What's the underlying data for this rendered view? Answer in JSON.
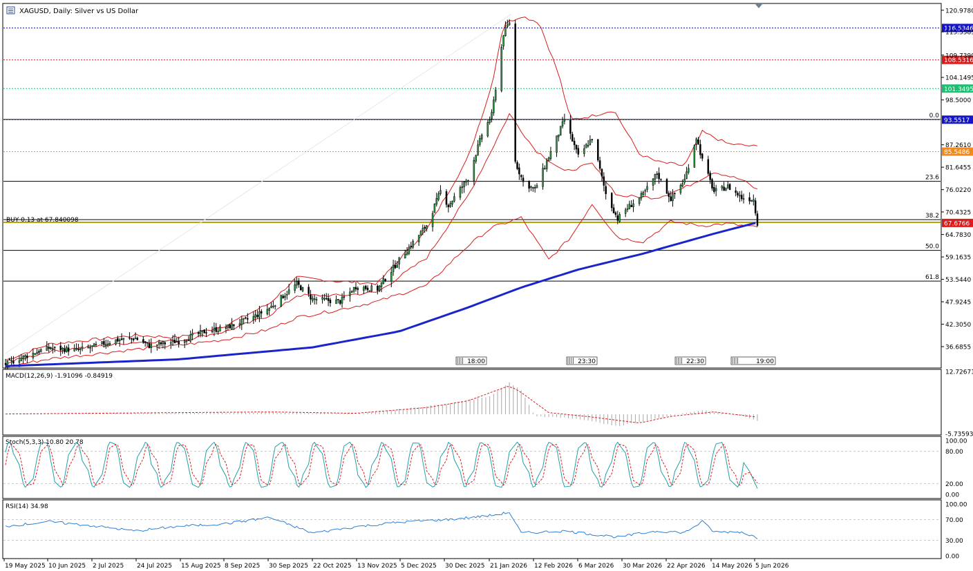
{
  "symbol_title": "XAGUSD, Daily:  Silver vs US Dollar",
  "chart_data": {
    "type": "line",
    "title": "XAGUSD, Daily:  Silver vs US Dollar",
    "x_dates": [
      "19 May 2025",
      "10 Jun 2025",
      "2 Jul 2025",
      "24 Jul 2025",
      "15 Aug 2025",
      "8 Sep 2025",
      "30 Sep 2025",
      "22 Oct 2025",
      "13 Nov 2025",
      "5 Dec 2025",
      "30 Dec 2025",
      "21 Jan 2026",
      "12 Feb 2026",
      "6 Mar 2026",
      "30 Mar 2026",
      "22 Apr 2026",
      "14 May 2026",
      "5 Jun 2026"
    ],
    "price_ticks": [
      "120.9780",
      "115.5585",
      "109.7390",
      "104.1495",
      "98.5000",
      "87.2610",
      "81.6455",
      "76.0220",
      "70.4325",
      "64.7830",
      "59.1635",
      "53.5440",
      "47.9245",
      "42.3050",
      "36.6855"
    ],
    "price_range": [
      31.5,
      122.5
    ],
    "horizontal_lines": [
      {
        "label": "116.5346",
        "value": 116.5346,
        "color": "#1515c8",
        "style": "dotted"
      },
      {
        "label": "108.5316",
        "value": 108.5316,
        "color": "#d81c1c",
        "style": "dotted"
      },
      {
        "label": "101.3495",
        "value": 101.3495,
        "color": "#18c070",
        "style": "dotted"
      },
      {
        "label": "93.5517",
        "value": 93.5517,
        "color": "#1515c8",
        "style": "dotted"
      },
      {
        "label": "85.5486",
        "value": 85.5486,
        "color": "#f08a1c",
        "style": "dotted"
      },
      {
        "label": "67.6766",
        "value": 67.6766,
        "color": "#e01a1a",
        "style": "current"
      }
    ],
    "fibonacci_levels": [
      {
        "label": "0.0",
        "value": 93.6
      },
      {
        "label": "23.6",
        "value": 78.1
      },
      {
        "label": "38.2",
        "value": 68.5
      },
      {
        "label": "50.0",
        "value": 60.8
      },
      {
        "label": "61.8",
        "value": 53.1
      }
    ],
    "trade_line": {
      "label": "BUY 0.13 at 67.840098",
      "value": 67.8401
    },
    "session_markers": [
      "18:00",
      "23:30",
      "22:30",
      "19:00"
    ],
    "close_series": [
      {
        "x": "2025-05-19",
        "y": 32.3
      },
      {
        "x": "2025-06-05",
        "y": 35.6
      },
      {
        "x": "2025-06-10",
        "y": 36.3
      },
      {
        "x": "2025-06-25",
        "y": 35.8
      },
      {
        "x": "2025-07-02",
        "y": 36.6
      },
      {
        "x": "2025-07-14",
        "y": 38.3
      },
      {
        "x": "2025-07-24",
        "y": 38.8
      },
      {
        "x": "2025-07-31",
        "y": 36.9
      },
      {
        "x": "2025-08-15",
        "y": 38.1
      },
      {
        "x": "2025-08-29",
        "y": 40.6
      },
      {
        "x": "2025-09-08",
        "y": 41.4
      },
      {
        "x": "2025-09-22",
        "y": 44.1
      },
      {
        "x": "2025-09-30",
        "y": 46.3
      },
      {
        "x": "2025-10-14",
        "y": 52.4
      },
      {
        "x": "2025-10-22",
        "y": 48.6
      },
      {
        "x": "2025-11-05",
        "y": 48.0
      },
      {
        "x": "2025-11-13",
        "y": 51.7
      },
      {
        "x": "2025-11-24",
        "y": 51.1
      },
      {
        "x": "2025-12-05",
        "y": 58.4
      },
      {
        "x": "2025-12-19",
        "y": 67.1
      },
      {
        "x": "2025-12-26",
        "y": 75.6
      },
      {
        "x": "2025-12-30",
        "y": 72.0
      },
      {
        "x": "2026-01-09",
        "y": 78.9
      },
      {
        "x": "2026-01-16",
        "y": 89.8
      },
      {
        "x": "2026-01-21",
        "y": 94.7
      },
      {
        "x": "2026-01-27",
        "y": 115.1
      },
      {
        "x": "2026-01-30",
        "y": 118.0
      },
      {
        "x": "2026-02-02",
        "y": 83.0
      },
      {
        "x": "2026-02-06",
        "y": 77.9
      },
      {
        "x": "2026-02-12",
        "y": 76.0
      },
      {
        "x": "2026-02-20",
        "y": 85.4
      },
      {
        "x": "2026-02-27",
        "y": 93.6
      },
      {
        "x": "2026-03-06",
        "y": 84.3
      },
      {
        "x": "2026-03-13",
        "y": 88.9
      },
      {
        "x": "2026-03-20",
        "y": 75.0
      },
      {
        "x": "2026-03-26",
        "y": 68.7
      },
      {
        "x": "2026-03-30",
        "y": 71.0
      },
      {
        "x": "2026-04-08",
        "y": 74.8
      },
      {
        "x": "2026-04-15",
        "y": 80.1
      },
      {
        "x": "2026-04-22",
        "y": 73.7
      },
      {
        "x": "2026-04-29",
        "y": 78.5
      },
      {
        "x": "2026-05-05",
        "y": 89.2
      },
      {
        "x": "2026-05-08",
        "y": 83.4
      },
      {
        "x": "2026-05-14",
        "y": 75.5
      },
      {
        "x": "2026-05-21",
        "y": 76.8
      },
      {
        "x": "2026-05-28",
        "y": 74.0
      },
      {
        "x": "2026-06-03",
        "y": 73.6
      },
      {
        "x": "2026-06-05",
        "y": 67.7
      }
    ],
    "bollinger_upper": [
      {
        "x": "2025-05-19",
        "y": 33.3
      },
      {
        "x": "2025-06-10",
        "y": 37.3
      },
      {
        "x": "2025-07-24",
        "y": 39.5
      },
      {
        "x": "2025-08-15",
        "y": 39.0
      },
      {
        "x": "2025-09-08",
        "y": 42.0
      },
      {
        "x": "2025-09-30",
        "y": 47.5
      },
      {
        "x": "2025-10-14",
        "y": 54.0
      },
      {
        "x": "2025-11-05",
        "y": 53.0
      },
      {
        "x": "2025-11-24",
        "y": 52.5
      },
      {
        "x": "2025-12-19",
        "y": 66.0
      },
      {
        "x": "2026-01-09",
        "y": 84.0
      },
      {
        "x": "2026-01-21",
        "y": 102.0
      },
      {
        "x": "2026-01-27",
        "y": 117.5
      },
      {
        "x": "2026-02-05",
        "y": 119.5
      },
      {
        "x": "2026-02-14",
        "y": 118.0
      },
      {
        "x": "2026-02-24",
        "y": 105.0
      },
      {
        "x": "2026-03-02",
        "y": 93.5
      },
      {
        "x": "2026-03-13",
        "y": 94.5
      },
      {
        "x": "2026-03-24",
        "y": 96.0
      },
      {
        "x": "2026-04-06",
        "y": 85.0
      },
      {
        "x": "2026-04-15",
        "y": 83.0
      },
      {
        "x": "2026-04-29",
        "y": 82.0
      },
      {
        "x": "2026-05-08",
        "y": 90.5
      },
      {
        "x": "2026-05-21",
        "y": 87.5
      },
      {
        "x": "2026-06-05",
        "y": 86.8
      }
    ],
    "bollinger_middle": [
      {
        "x": "2025-05-19",
        "y": 32.5
      },
      {
        "x": "2025-06-10",
        "y": 35.5
      },
      {
        "x": "2025-07-24",
        "y": 37.8
      },
      {
        "x": "2025-08-15",
        "y": 38.2
      },
      {
        "x": "2025-09-08",
        "y": 40.5
      },
      {
        "x": "2025-09-30",
        "y": 44.5
      },
      {
        "x": "2025-10-14",
        "y": 49.5
      },
      {
        "x": "2025-11-05",
        "y": 49.5
      },
      {
        "x": "2025-11-24",
        "y": 50.3
      },
      {
        "x": "2025-12-19",
        "y": 59.0
      },
      {
        "x": "2026-01-09",
        "y": 74.5
      },
      {
        "x": "2026-01-21",
        "y": 86.0
      },
      {
        "x": "2026-01-30",
        "y": 95.0
      },
      {
        "x": "2026-02-12",
        "y": 86.0
      },
      {
        "x": "2026-02-27",
        "y": 80.5
      },
      {
        "x": "2026-03-13",
        "y": 82.5
      },
      {
        "x": "2026-03-26",
        "y": 74.5
      },
      {
        "x": "2026-04-15",
        "y": 74.0
      },
      {
        "x": "2026-04-29",
        "y": 76.5
      },
      {
        "x": "2026-05-14",
        "y": 80.5
      },
      {
        "x": "2026-05-28",
        "y": 78.5
      },
      {
        "x": "2026-06-05",
        "y": 76.0
      }
    ],
    "bollinger_lower": [
      {
        "x": "2025-05-19",
        "y": 31.6
      },
      {
        "x": "2025-06-10",
        "y": 33.6
      },
      {
        "x": "2025-07-24",
        "y": 36.0
      },
      {
        "x": "2025-08-15",
        "y": 37.0
      },
      {
        "x": "2025-09-08",
        "y": 38.5
      },
      {
        "x": "2025-09-30",
        "y": 41.0
      },
      {
        "x": "2025-10-14",
        "y": 44.0
      },
      {
        "x": "2025-11-05",
        "y": 46.0
      },
      {
        "x": "2025-11-24",
        "y": 48.0
      },
      {
        "x": "2025-12-19",
        "y": 52.0
      },
      {
        "x": "2026-01-09",
        "y": 62.0
      },
      {
        "x": "2026-01-21",
        "y": 66.5
      },
      {
        "x": "2026-02-05",
        "y": 69.0
      },
      {
        "x": "2026-02-19",
        "y": 58.5
      },
      {
        "x": "2026-03-02",
        "y": 64.0
      },
      {
        "x": "2026-03-13",
        "y": 72.5
      },
      {
        "x": "2026-03-26",
        "y": 64.0
      },
      {
        "x": "2026-04-08",
        "y": 63.0
      },
      {
        "x": "2026-04-22",
        "y": 68.0
      },
      {
        "x": "2026-05-08",
        "y": 67.0
      },
      {
        "x": "2026-05-21",
        "y": 67.5
      },
      {
        "x": "2026-06-05",
        "y": 66.5
      }
    ],
    "moving_average_200": [
      {
        "x": "2025-05-19",
        "y": 31.8
      },
      {
        "x": "2025-08-15",
        "y": 33.5
      },
      {
        "x": "2025-10-22",
        "y": 36.5
      },
      {
        "x": "2025-12-05",
        "y": 40.5
      },
      {
        "x": "2026-01-09",
        "y": 46.5
      },
      {
        "x": "2026-02-05",
        "y": 51.5
      },
      {
        "x": "2026-03-06",
        "y": 56.0
      },
      {
        "x": "2026-04-08",
        "y": 60.0
      },
      {
        "x": "2026-05-14",
        "y": 65.0
      },
      {
        "x": "2026-06-05",
        "y": 67.8
      }
    ],
    "macd": {
      "label": "MACD(12,26,9) -1.91096 -0.84919",
      "ticks": [
        "12.72671",
        "-5.73593"
      ],
      "range": [
        -5.73593,
        12.72671
      ],
      "histogram": [
        {
          "x": "2025-05-19",
          "y": 0.1
        },
        {
          "x": "2025-09-30",
          "y": 0.6
        },
        {
          "x": "2025-11-13",
          "y": 0.2
        },
        {
          "x": "2025-12-05",
          "y": 1.5
        },
        {
          "x": "2025-12-30",
          "y": 3.2
        },
        {
          "x": "2026-01-21",
          "y": 5.5
        },
        {
          "x": "2026-01-30",
          "y": 9.5
        },
        {
          "x": "2026-02-05",
          "y": 7.0
        },
        {
          "x": "2026-02-12",
          "y": -0.5
        },
        {
          "x": "2026-02-27",
          "y": -1.0
        },
        {
          "x": "2026-03-13",
          "y": -2.0
        },
        {
          "x": "2026-03-26",
          "y": -3.6
        },
        {
          "x": "2026-04-15",
          "y": -1.2
        },
        {
          "x": "2026-05-08",
          "y": 1.2
        },
        {
          "x": "2026-05-28",
          "y": -0.5
        },
        {
          "x": "2026-06-05",
          "y": -1.9
        }
      ],
      "signal": [
        {
          "x": "2025-05-19",
          "y": 0.1
        },
        {
          "x": "2025-09-30",
          "y": 0.7
        },
        {
          "x": "2025-11-13",
          "y": 0.3
        },
        {
          "x": "2025-12-19",
          "y": 2.0
        },
        {
          "x": "2026-01-09",
          "y": 4.0
        },
        {
          "x": "2026-01-30",
          "y": 8.5
        },
        {
          "x": "2026-02-05",
          "y": 6.5
        },
        {
          "x": "2026-02-19",
          "y": 0.5
        },
        {
          "x": "2026-03-13",
          "y": -0.8
        },
        {
          "x": "2026-04-06",
          "y": -2.6
        },
        {
          "x": "2026-04-22",
          "y": -0.6
        },
        {
          "x": "2026-05-14",
          "y": 0.7
        },
        {
          "x": "2026-06-05",
          "y": -0.85
        }
      ]
    },
    "stochastic": {
      "label": "Stoch(5,3,3) 10.80 20.78",
      "ticks": [
        "100.00",
        "80.00",
        "20.00",
        "0.00"
      ],
      "range": [
        0,
        100
      ]
    },
    "rsi": {
      "label": "RSI(14) 34.98",
      "ticks": [
        "100.00",
        "70.00",
        "30.00",
        "0.00"
      ],
      "range": [
        0,
        100
      ],
      "values": [
        {
          "x": "2025-05-19",
          "y": 57
        },
        {
          "x": "2025-06-10",
          "y": 66
        },
        {
          "x": "2025-07-02",
          "y": 58
        },
        {
          "x": "2025-07-24",
          "y": 48
        },
        {
          "x": "2025-08-15",
          "y": 57
        },
        {
          "x": "2025-09-08",
          "y": 62
        },
        {
          "x": "2025-09-30",
          "y": 74
        },
        {
          "x": "2025-10-22",
          "y": 44
        },
        {
          "x": "2025-11-13",
          "y": 56
        },
        {
          "x": "2025-12-05",
          "y": 65
        },
        {
          "x": "2025-12-30",
          "y": 70
        },
        {
          "x": "2026-01-21",
          "y": 78
        },
        {
          "x": "2026-01-30",
          "y": 84
        },
        {
          "x": "2026-02-05",
          "y": 44
        },
        {
          "x": "2026-02-27",
          "y": 48
        },
        {
          "x": "2026-03-26",
          "y": 36
        },
        {
          "x": "2026-04-15",
          "y": 48
        },
        {
          "x": "2026-04-29",
          "y": 45
        },
        {
          "x": "2026-05-08",
          "y": 66
        },
        {
          "x": "2026-05-14",
          "y": 46
        },
        {
          "x": "2026-05-28",
          "y": 46
        },
        {
          "x": "2026-06-05",
          "y": 35
        }
      ]
    }
  }
}
